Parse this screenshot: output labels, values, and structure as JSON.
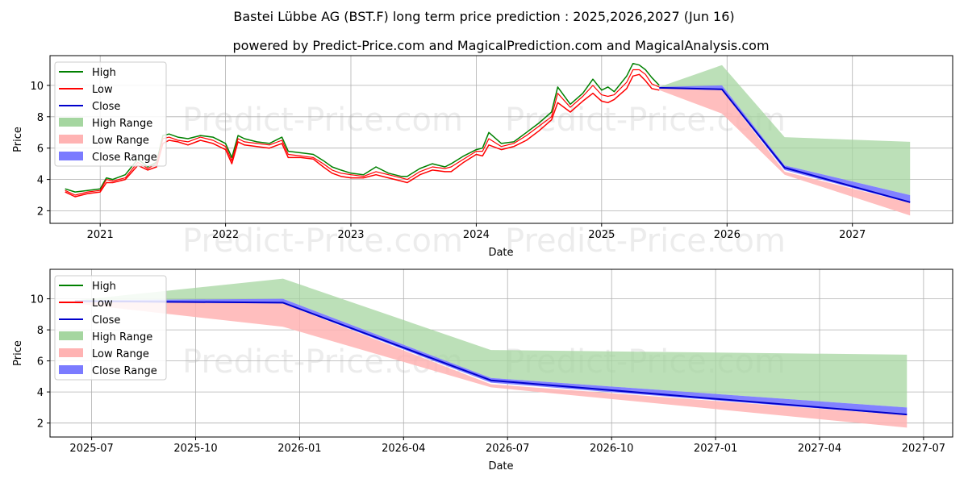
{
  "figure": {
    "title": "Bastei Lübbe AG (BST.F) long term price prediction : 2025,2026,2027 (Jun 16)",
    "subtitle": "powered by Predict-Price.com and MagicalPrediction.com and MagicalAnalysis.com",
    "watermark": "Predict-Price.com"
  },
  "colors": {
    "high": "#008000",
    "low": "#ff0000",
    "close": "#0000cc",
    "high_range": "#a5d6a0",
    "low_range": "#ffb3b3",
    "close_range": "#7b7bff"
  },
  "legend": {
    "high": "High",
    "low": "Low",
    "close": "Close",
    "high_range": "High Range",
    "low_range": "Low Range",
    "close_range": "Close Range"
  },
  "chart_data": [
    {
      "type": "line",
      "id": "overview",
      "title": "",
      "xlabel": "Date",
      "ylabel": "Price",
      "xlim": [
        2020.6,
        2027.8
      ],
      "ylim": [
        1.2,
        11.9
      ],
      "xticks": [
        2021,
        2022,
        2023,
        2024,
        2025,
        2026,
        2027
      ],
      "xtick_labels": [
        "2021",
        "2022",
        "2023",
        "2024",
        "2025",
        "2026",
        "2027"
      ],
      "yticks": [
        2,
        4,
        6,
        8,
        10
      ],
      "ytick_labels": [
        "2",
        "4",
        "6",
        "8",
        "10"
      ],
      "grid": true,
      "legend_position": "top-left",
      "history": {
        "x": [
          2020.72,
          2020.8,
          2020.9,
          2021.0,
          2021.05,
          2021.1,
          2021.2,
          2021.3,
          2021.38,
          2021.45,
          2021.5,
          2021.55,
          2021.62,
          2021.7,
          2021.8,
          2021.9,
          2022.0,
          2022.05,
          2022.1,
          2022.15,
          2022.25,
          2022.35,
          2022.45,
          2022.5,
          2022.6,
          2022.7,
          2022.78,
          2022.85,
          2022.92,
          2023.0,
          2023.1,
          2023.2,
          2023.3,
          2023.4,
          2023.45,
          2023.55,
          2023.65,
          2023.75,
          2023.8,
          2023.9,
          2024.0,
          2024.05,
          2024.1,
          2024.2,
          2024.3,
          2024.4,
          2024.5,
          2024.6,
          2024.65,
          2024.75,
          2024.85,
          2024.93,
          2025.0,
          2025.05,
          2025.1,
          2025.2,
          2025.25,
          2025.3,
          2025.35,
          2025.4,
          2025.46
        ],
        "high": [
          3.4,
          3.2,
          3.3,
          3.4,
          4.1,
          4.0,
          4.3,
          5.3,
          4.8,
          5.1,
          6.8,
          6.9,
          6.7,
          6.6,
          6.8,
          6.7,
          6.3,
          5.4,
          6.8,
          6.6,
          6.4,
          6.3,
          6.7,
          5.8,
          5.7,
          5.6,
          5.2,
          4.8,
          4.6,
          4.4,
          4.3,
          4.8,
          4.4,
          4.2,
          4.2,
          4.7,
          5.0,
          4.8,
          5.0,
          5.5,
          5.9,
          6.0,
          7.0,
          6.3,
          6.4,
          7.0,
          7.6,
          8.3,
          9.9,
          8.8,
          9.5,
          10.4,
          9.7,
          9.9,
          9.6,
          10.6,
          11.4,
          11.3,
          11.0,
          10.5,
          10.0
        ],
        "low": [
          3.2,
          2.9,
          3.1,
          3.2,
          3.8,
          3.8,
          4.0,
          4.9,
          4.6,
          4.8,
          6.3,
          6.5,
          6.4,
          6.2,
          6.5,
          6.3,
          5.9,
          5.0,
          6.4,
          6.2,
          6.1,
          6.0,
          6.3,
          5.4,
          5.4,
          5.3,
          4.8,
          4.4,
          4.2,
          4.1,
          4.1,
          4.3,
          4.1,
          3.9,
          3.8,
          4.3,
          4.6,
          4.5,
          4.5,
          5.1,
          5.6,
          5.5,
          6.2,
          5.9,
          6.1,
          6.5,
          7.1,
          7.8,
          8.9,
          8.3,
          9.0,
          9.5,
          9.0,
          8.9,
          9.1,
          9.8,
          10.6,
          10.7,
          10.3,
          9.8,
          9.7
        ],
        "close": [
          3.3,
          3.0,
          3.2,
          3.3,
          4.0,
          3.9,
          4.1,
          5.1,
          4.7,
          5.0,
          6.6,
          6.7,
          6.5,
          6.4,
          6.7,
          6.5,
          6.1,
          5.2,
          6.6,
          6.4,
          6.3,
          6.2,
          6.5,
          5.6,
          5.5,
          5.4,
          5.0,
          4.6,
          4.4,
          4.3,
          4.2,
          4.5,
          4.3,
          4.1,
          4.0,
          4.5,
          4.8,
          4.7,
          4.8,
          5.3,
          5.8,
          5.8,
          6.6,
          6.1,
          6.3,
          6.8,
          7.4,
          8.0,
          9.5,
          8.6,
          9.3,
          10.0,
          9.4,
          9.3,
          9.4,
          10.2,
          11.0,
          11.0,
          10.7,
          10.1,
          9.9
        ]
      },
      "forecast": {
        "x": [
          2025.46,
          2025.96,
          2026.46,
          2027.46
        ],
        "high_range": {
          "upper": [
            9.9,
            11.3,
            6.7,
            6.4
          ],
          "lower": [
            9.8,
            10.0,
            4.9,
            3.0
          ]
        },
        "low_range": {
          "upper": [
            9.8,
            9.7,
            4.5,
            2.5
          ],
          "lower": [
            9.7,
            8.2,
            4.3,
            1.7
          ]
        },
        "close_range": {
          "upper": [
            9.9,
            10.0,
            4.9,
            3.0
          ],
          "lower": [
            9.8,
            9.7,
            4.6,
            2.5
          ]
        },
        "close": [
          9.85,
          9.75,
          4.75,
          2.55
        ]
      }
    },
    {
      "type": "line",
      "id": "zoom",
      "title": "",
      "xlabel": "Date",
      "ylabel": "Price",
      "xlim": [
        2025.4,
        2027.57
      ],
      "ylim": [
        1.1,
        11.9
      ],
      "xticks": [
        2025.5,
        2025.75,
        2026.0,
        2026.25,
        2026.5,
        2026.75,
        2027.0,
        2027.25,
        2027.5
      ],
      "xtick_labels": [
        "2025-07",
        "2025-10",
        "2026-01",
        "2026-04",
        "2026-07",
        "2026-10",
        "2027-01",
        "2027-04",
        "2027-07"
      ],
      "yticks": [
        2,
        4,
        6,
        8,
        10
      ],
      "ytick_labels": [
        "2",
        "4",
        "6",
        "8",
        "10"
      ],
      "grid": true,
      "legend_position": "top-left",
      "forecast": {
        "x": [
          2025.46,
          2025.96,
          2026.46,
          2027.46
        ],
        "high_range": {
          "upper": [
            9.9,
            11.3,
            6.7,
            6.4
          ],
          "lower": [
            9.8,
            10.0,
            4.9,
            3.0
          ]
        },
        "low_range": {
          "upper": [
            9.8,
            9.7,
            4.5,
            2.5
          ],
          "lower": [
            9.7,
            8.2,
            4.3,
            1.7
          ]
        },
        "close_range": {
          "upper": [
            9.9,
            10.0,
            4.9,
            3.0
          ],
          "lower": [
            9.8,
            9.7,
            4.6,
            2.5
          ]
        },
        "close": [
          9.85,
          9.75,
          4.75,
          2.55
        ]
      }
    }
  ]
}
